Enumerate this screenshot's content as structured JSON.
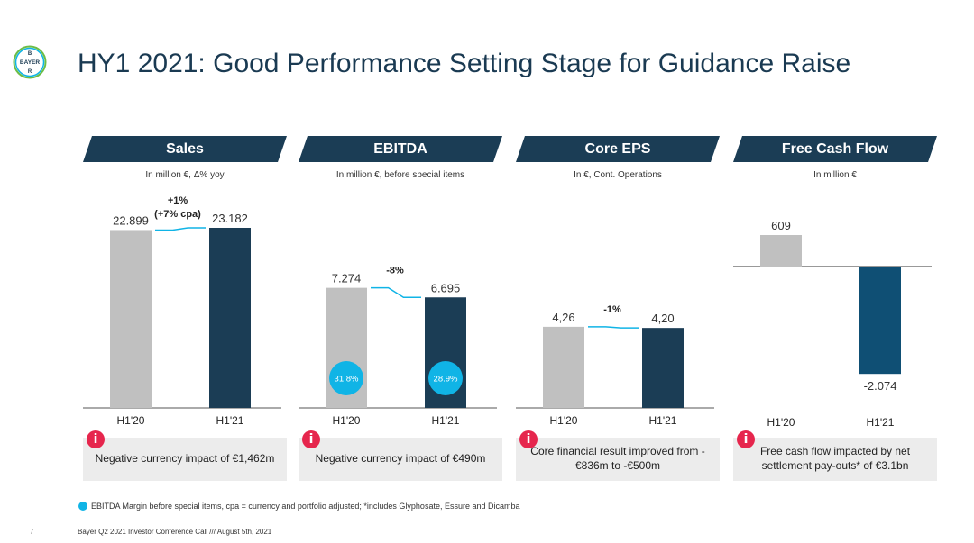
{
  "logo": {
    "text_top": "B",
    "text_mid": "BAYER",
    "text_bottom": "R"
  },
  "page_title": "HY1 2021: Good Performance Setting Stage for Guidance Raise",
  "colors": {
    "dark_navy": "#1b3d55",
    "grey_bar": "#c0c0c0",
    "fcf_bar": "#0f4f74",
    "connector": "#10b4e6",
    "margin_circle": "#10b4e6",
    "info_icon": "#e6264d",
    "info_box": "#ececec"
  },
  "chart_data": [
    {
      "type": "bar",
      "title": "Sales",
      "subtitle": "In million €, Δ% yoy",
      "categories": [
        "H1'20",
        "H1'21"
      ],
      "values": [
        22899,
        23182
      ],
      "value_labels": [
        "22.899",
        "23.182"
      ],
      "change_label": "+1%",
      "change_label_2": "(+7% cpa)",
      "ylim": [
        0,
        25500
      ],
      "info": "Negative currency impact of €1,462m"
    },
    {
      "type": "bar",
      "title": "EBITDA",
      "subtitle": "In million €, before special items",
      "categories": [
        "H1'20",
        "H1'21"
      ],
      "values": [
        7274,
        6695
      ],
      "value_labels": [
        "7.274",
        "6.695"
      ],
      "change_label": "-8%",
      "margins": [
        "31.8%",
        "28.9%"
      ],
      "ylim": [
        0,
        12000
      ],
      "info": "Negative currency impact of €490m"
    },
    {
      "type": "bar",
      "title": "Core EPS",
      "subtitle": "In €, Cont. Operations",
      "categories": [
        "H1'20",
        "H1'21"
      ],
      "values": [
        4.26,
        4.2
      ],
      "value_labels": [
        "4,26",
        "4,20"
      ],
      "change_label": "-1%",
      "ylim": [
        0,
        10.4
      ],
      "info": "Core financial result improved from -€836m to -€500m"
    },
    {
      "type": "bar",
      "title": "Free Cash Flow",
      "subtitle": "In million €",
      "categories": [
        "H1'20",
        "H1'21"
      ],
      "values": [
        609,
        -2074
      ],
      "value_labels": [
        "609",
        "-2.074"
      ],
      "ylim": [
        -2074,
        609
      ],
      "info": "Free cash flow impacted by net settlement pay-outs* of €3.1bn"
    }
  ],
  "footnote": "EBITDA Margin before special items, cpa = currency and portfolio adjusted; *includes Glyphosate, Essure and Dicamba",
  "page_number": "7",
  "footer": "Bayer Q2 2021 Investor Conference Call /// August 5th, 2021"
}
